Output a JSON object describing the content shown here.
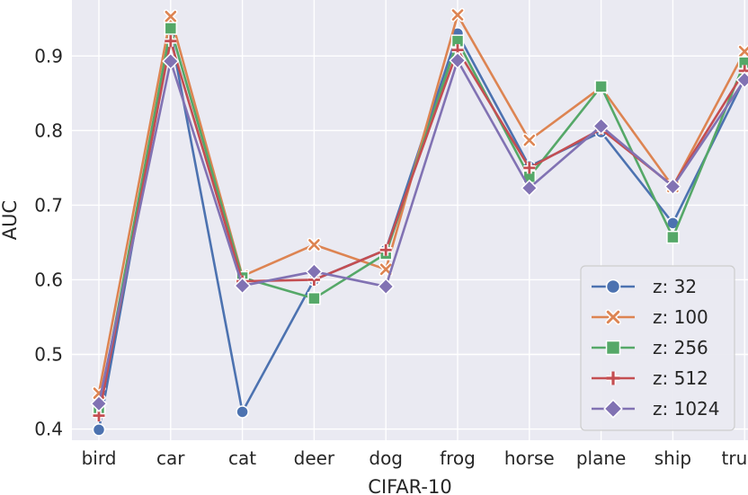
{
  "chart_data": {
    "type": "line",
    "title": "",
    "xlabel": "CIFAR-10",
    "ylabel": "AUC",
    "categories": [
      "bird",
      "car",
      "cat",
      "deer",
      "dog",
      "frog",
      "horse",
      "plane",
      "ship",
      "truck"
    ],
    "ylim": [
      0.385,
      0.975
    ],
    "yticks": [
      0.4,
      0.5,
      0.6,
      0.7,
      0.8,
      0.9
    ],
    "grid": true,
    "legend_position": "lower-right",
    "series": [
      {
        "name": "z: 32",
        "color": "#4c72b0",
        "marker": "circle",
        "values": [
          0.399,
          0.93,
          0.423,
          0.6,
          0.64,
          0.93,
          0.752,
          0.798,
          0.676,
          0.87
        ]
      },
      {
        "name": "z: 100",
        "color": "#dd8452",
        "marker": "x",
        "values": [
          0.448,
          0.953,
          0.605,
          0.647,
          0.614,
          0.955,
          0.787,
          0.858,
          0.725,
          0.906
        ]
      },
      {
        "name": "z: 256",
        "color": "#55a868",
        "marker": "square",
        "values": [
          0.424,
          0.937,
          0.603,
          0.575,
          0.635,
          0.92,
          0.738,
          0.859,
          0.657,
          0.891
        ]
      },
      {
        "name": "z: 512",
        "color": "#c44e52",
        "marker": "plus",
        "values": [
          0.418,
          0.92,
          0.598,
          0.6,
          0.64,
          0.908,
          0.75,
          0.802,
          0.726,
          0.88
        ]
      },
      {
        "name": "z: 1024",
        "color": "#8172b3",
        "marker": "diamond",
        "values": [
          0.434,
          0.893,
          0.592,
          0.611,
          0.591,
          0.894,
          0.723,
          0.806,
          0.725,
          0.868
        ]
      }
    ]
  }
}
